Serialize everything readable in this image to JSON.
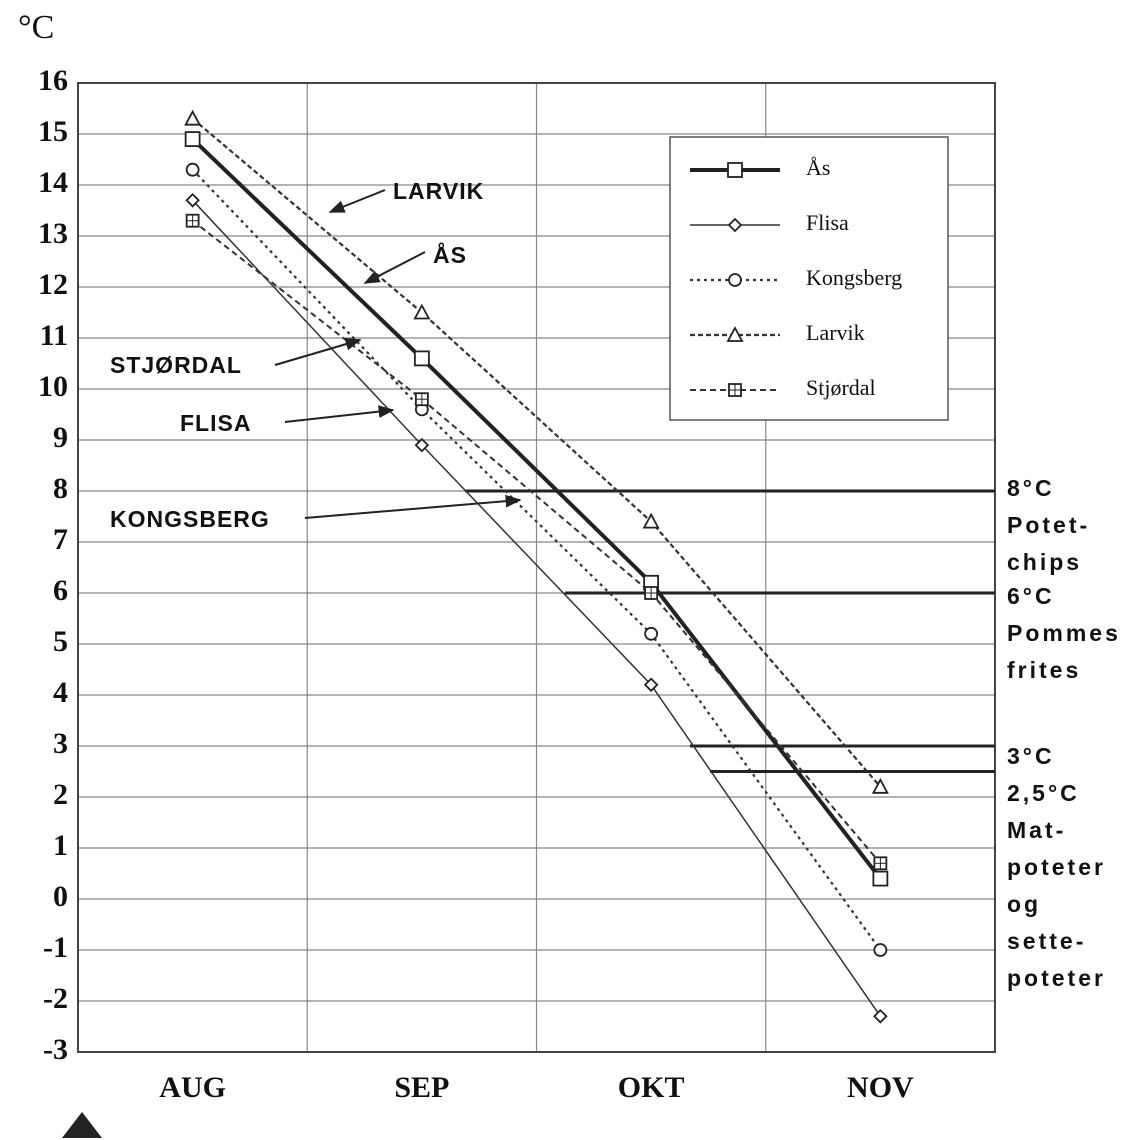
{
  "chart_data": {
    "type": "line",
    "y_label": "°C",
    "categories": [
      "AUG",
      "SEP",
      "OKT",
      "NOV"
    ],
    "series": [
      {
        "name": "Ås",
        "color": "#222",
        "marker": "square",
        "values": [
          14.9,
          10.6,
          6.2,
          0.4
        ]
      },
      {
        "name": "Flisa",
        "color": "#333",
        "marker": "diamond",
        "values": [
          13.7,
          8.9,
          4.2,
          -2.3
        ]
      },
      {
        "name": "Kongsberg",
        "color": "#333",
        "marker": "circle",
        "values": [
          14.3,
          9.6,
          5.2,
          -1.0
        ]
      },
      {
        "name": "Larvik",
        "color": "#333",
        "marker": "triangle",
        "values": [
          15.3,
          11.5,
          7.4,
          2.2
        ]
      },
      {
        "name": "Stjørdal",
        "color": "#333",
        "marker": "boxplus",
        "values": [
          13.3,
          9.8,
          6.0,
          0.7
        ]
      }
    ],
    "line_labels": [
      "LARVIK",
      "ÅS",
      "STJØRDAL",
      "FLISA",
      "KONGSBERG"
    ],
    "reference_lines": [
      {
        "value": 8,
        "label": [
          "8°C",
          "Potet-",
          "chips"
        ]
      },
      {
        "value": 6,
        "label": [
          "6°C",
          "Pommes",
          "frites"
        ]
      },
      {
        "value": 3,
        "label": [
          "3°C"
        ]
      },
      {
        "value": 2.5,
        "label": [
          "2,5°C",
          "Mat-",
          "poteter",
          "og",
          "sette-",
          "poteter"
        ]
      }
    ],
    "ylim": [
      -3,
      16
    ],
    "yticks": [
      -3,
      -2,
      -1,
      0,
      1,
      2,
      3,
      4,
      5,
      6,
      7,
      8,
      9,
      10,
      11,
      12,
      13,
      14,
      15,
      16
    ],
    "grid": true
  }
}
